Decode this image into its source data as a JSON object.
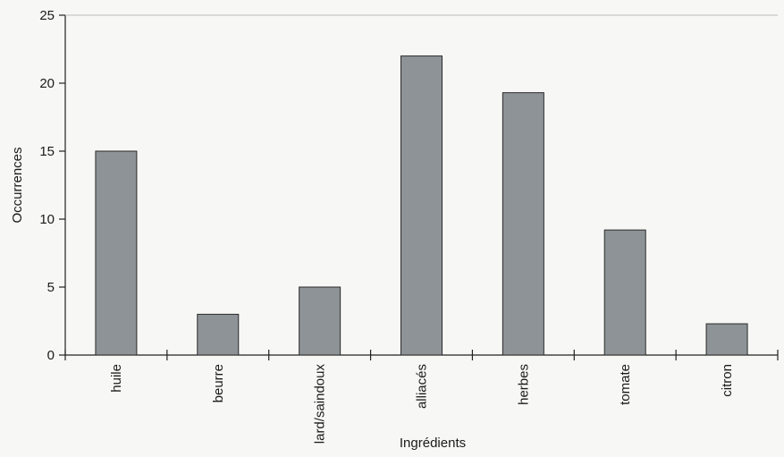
{
  "chart_data": {
    "type": "bar",
    "title": "",
    "xlabel": "Ingrédients",
    "ylabel": "Occurrences",
    "categories": [
      "huile",
      "beurre",
      "lard/saindoux",
      "alliacés",
      "herbes",
      "tomate",
      "citron"
    ],
    "values": [
      15,
      3,
      5,
      22,
      19.3,
      9.2,
      2.3
    ],
    "ylim": [
      0,
      25
    ],
    "yticks": [
      0,
      5,
      10,
      15,
      20,
      25
    ],
    "yticks_labels": [
      "0",
      "5",
      "10",
      "15",
      "20",
      "25"
    ],
    "grid": false,
    "legend": "none",
    "bar_color": "#8e9397"
  }
}
